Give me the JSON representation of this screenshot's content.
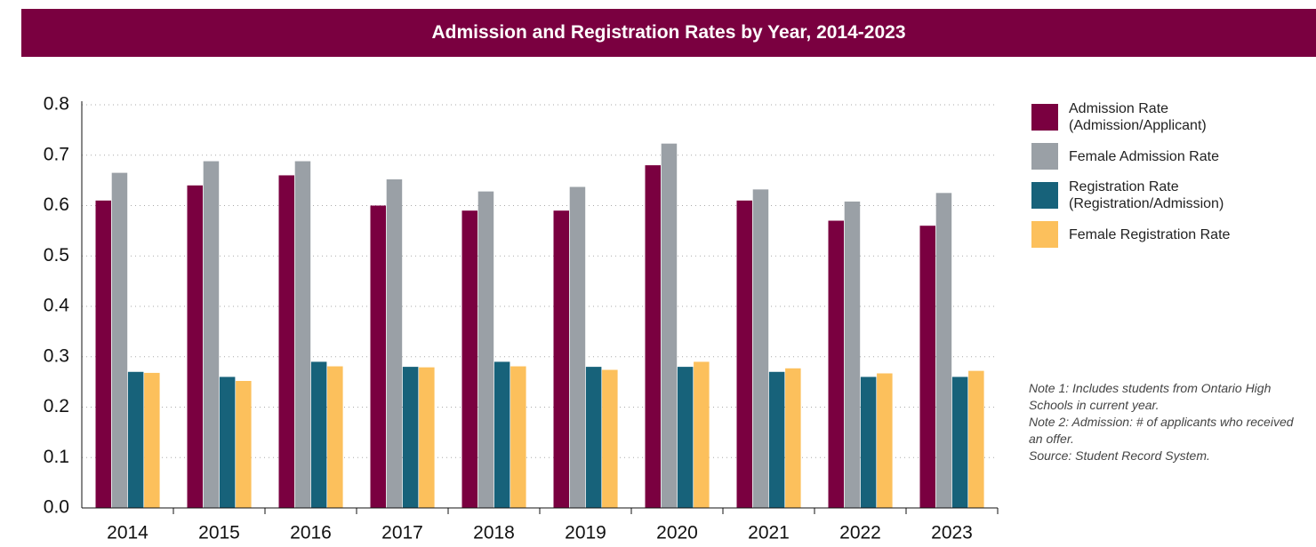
{
  "chart_data": {
    "type": "bar",
    "title": "Admission and Registration Rates by Year, 2014-2023",
    "categories": [
      "2014",
      "2015",
      "2016",
      "2017",
      "2018",
      "2019",
      "2020",
      "2021",
      "2022",
      "2023"
    ],
    "series": [
      {
        "name": "Admission Rate (Admission/Applicant)",
        "color": "#7a0040",
        "values": [
          0.61,
          0.64,
          0.66,
          0.6,
          0.59,
          0.59,
          0.68,
          0.61,
          0.57,
          0.56
        ]
      },
      {
        "name": "Female Admission Rate",
        "color": "#9aa0a6",
        "values": [
          0.665,
          0.688,
          0.688,
          0.652,
          0.628,
          0.637,
          0.723,
          0.632,
          0.608,
          0.625
        ]
      },
      {
        "name": "Registration Rate (Registration/Admission)",
        "color": "#17627a",
        "values": [
          0.27,
          0.26,
          0.29,
          0.28,
          0.29,
          0.28,
          0.28,
          0.27,
          0.26,
          0.26
        ]
      },
      {
        "name": "Female Registration Rate",
        "color": "#fcc05c",
        "values": [
          0.268,
          0.252,
          0.281,
          0.279,
          0.281,
          0.274,
          0.29,
          0.277,
          0.267,
          0.272
        ]
      }
    ],
    "ylim": [
      0,
      0.8
    ],
    "yticks": [
      {
        "value": 0,
        "label": "0.0"
      },
      0.1,
      0.2,
      0.3,
      0.4,
      0.5,
      0.6,
      0.7,
      0.8
    ],
    "grid": true,
    "legend": "right",
    "notes": [
      "Note 1: Includes students from Ontario High Schools in current year.",
      "Note 2: Admission: # of applicants who received an offer.",
      "Source: Student Record System."
    ]
  }
}
